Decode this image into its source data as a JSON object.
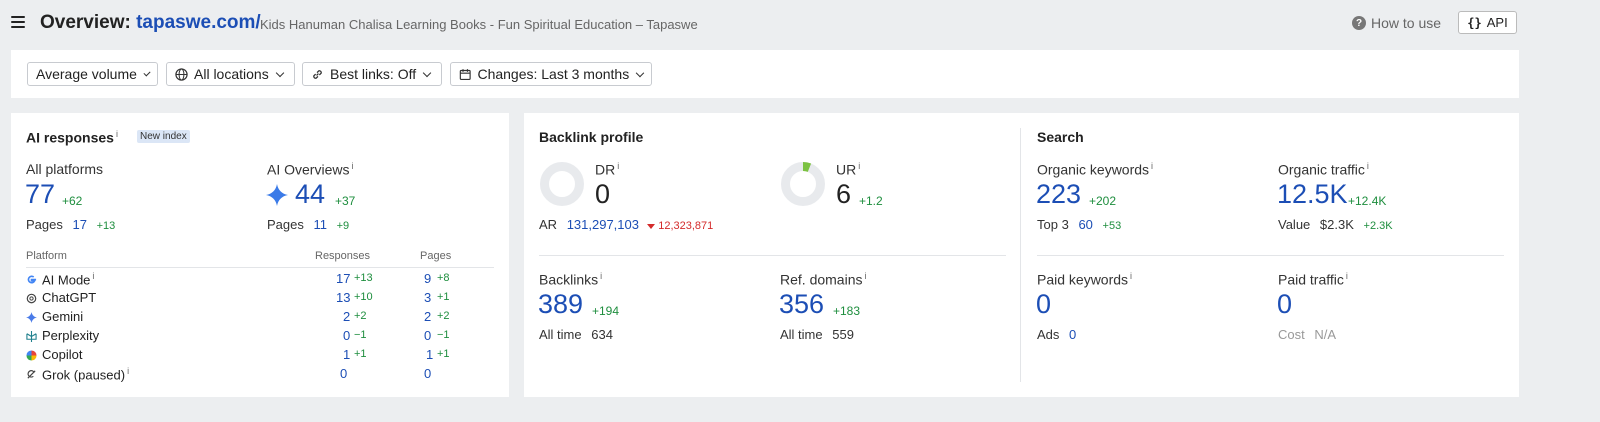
{
  "header": {
    "title_prefix": "Overview:",
    "domain": "tapaswe.com/",
    "subtitle": "Kids Hanuman Chalisa Learning Books - Fun Spiritual Education – Tapaswe",
    "how_to_use": "How to use",
    "api": "API"
  },
  "filters": {
    "volume": "Average volume",
    "locations": "All locations",
    "best_links": "Best links: Off",
    "changes": "Changes: Last 3 months"
  },
  "ai_responses": {
    "title": "AI responses",
    "badge": "New index",
    "all_platforms": {
      "label": "All platforms",
      "value": "77",
      "delta": "+62",
      "pages_label": "Pages",
      "pages": "17",
      "pages_delta": "+13"
    },
    "ai_overviews": {
      "label": "AI Overviews",
      "value": "44",
      "delta": "+37",
      "pages_label": "Pages",
      "pages": "11",
      "pages_delta": "+9"
    },
    "table_headers": {
      "platform": "Platform",
      "responses": "Responses",
      "pages": "Pages"
    },
    "rows": [
      {
        "name": "AI Mode",
        "responses": "17",
        "responses_delta": "+13",
        "pages": "9",
        "pages_delta": "+8"
      },
      {
        "name": "ChatGPT",
        "responses": "13",
        "responses_delta": "+10",
        "pages": "3",
        "pages_delta": "+1"
      },
      {
        "name": "Gemini",
        "responses": "2",
        "responses_delta": "+2",
        "pages": "2",
        "pages_delta": "+2"
      },
      {
        "name": "Perplexity",
        "responses": "0",
        "responses_delta": "−1",
        "pages": "0",
        "pages_delta": "−1"
      },
      {
        "name": "Copilot",
        "responses": "1",
        "responses_delta": "+1",
        "pages": "1",
        "pages_delta": "+1"
      },
      {
        "name": "Grok (paused)",
        "responses": "0",
        "responses_delta": "",
        "pages": "0",
        "pages_delta": ""
      }
    ]
  },
  "backlink_profile": {
    "title": "Backlink profile",
    "dr": {
      "label": "DR",
      "value": "0",
      "ring_fill": 0
    },
    "ur": {
      "label": "UR",
      "value": "6",
      "delta": "+1.2",
      "ring_fill": 0.06
    },
    "ar": {
      "label": "AR",
      "value": "131,297,103",
      "delta": "12,323,871"
    },
    "backlinks": {
      "label": "Backlinks",
      "value": "389",
      "delta": "+194",
      "sub_label": "All time",
      "sub_value": "634"
    },
    "ref_domains": {
      "label": "Ref. domains",
      "value": "356",
      "delta": "+183",
      "sub_label": "All time",
      "sub_value": "559"
    }
  },
  "search": {
    "title": "Search",
    "organic_keywords": {
      "label": "Organic keywords",
      "value": "223",
      "delta": "+202",
      "sub_label": "Top 3",
      "sub_value": "60",
      "sub_delta": "+53"
    },
    "organic_traffic": {
      "label": "Organic traffic",
      "value": "12.5K",
      "delta": "+12.4K",
      "sub_label": "Value",
      "sub_value": "$2.3K",
      "sub_delta": "+2.3K"
    },
    "paid_keywords": {
      "label": "Paid keywords",
      "value": "0",
      "sub_label": "Ads",
      "sub_value": "0"
    },
    "paid_traffic": {
      "label": "Paid traffic",
      "value": "0",
      "sub_label": "Cost",
      "sub_value": "N/A"
    }
  },
  "colors": {
    "accent": "#1c4eb5",
    "positive": "#1e8e3e",
    "negative": "#d42b2b",
    "ring_track": "#e8eaed",
    "ring_fill": "#7cc242"
  }
}
